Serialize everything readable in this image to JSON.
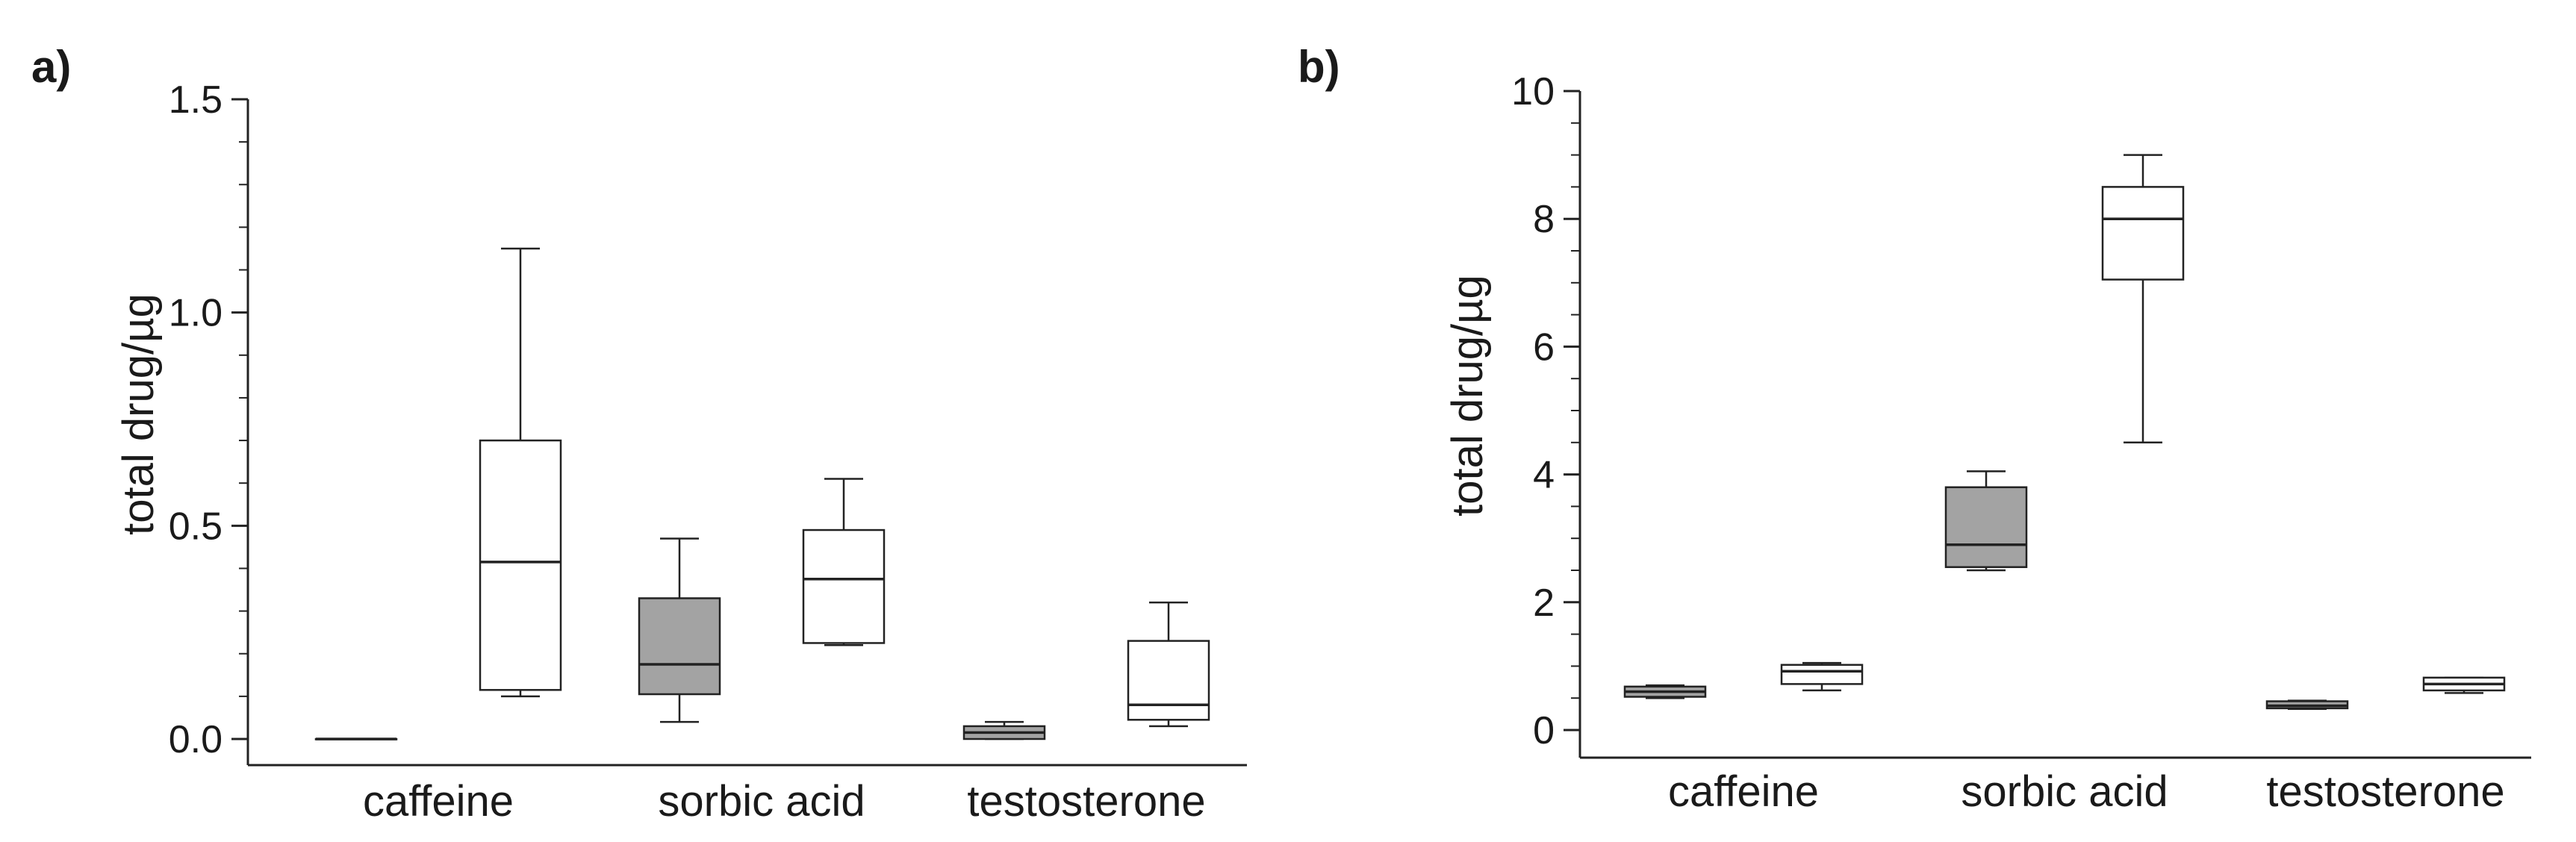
{
  "chart_data": [
    {
      "panel_label": "a)",
      "type": "box",
      "title": "",
      "xlabel": "",
      "ylabel": "total drug/µg",
      "ylim": [
        0,
        1.5
      ],
      "yticks": [
        0.0,
        0.5,
        1.0,
        1.5
      ],
      "ytick_labels": [
        "0.0",
        "0.5",
        "1.0",
        "1.5"
      ],
      "minor_ytick_step": 0.1,
      "categories": [
        "caffeine",
        "sorbic acid",
        "testosterone"
      ],
      "series": [
        {
          "name": "grey",
          "color": "#a3a3a3",
          "boxes": [
            {
              "min": 0.0,
              "q1": 0.0,
              "median": 0.0,
              "q3": 0.0,
              "max": 0.0
            },
            {
              "min": 0.04,
              "q1": 0.105,
              "median": 0.175,
              "q3": 0.33,
              "max": 0.47
            },
            {
              "min": 0.0,
              "q1": 0.0,
              "median": 0.015,
              "q3": 0.03,
              "max": 0.04
            }
          ]
        },
        {
          "name": "white",
          "color": "#ffffff",
          "boxes": [
            {
              "min": 0.1,
              "q1": 0.115,
              "median": 0.415,
              "q3": 0.7,
              "max": 1.15
            },
            {
              "min": 0.22,
              "q1": 0.225,
              "median": 0.375,
              "q3": 0.49,
              "max": 0.61
            },
            {
              "min": 0.03,
              "q1": 0.045,
              "median": 0.08,
              "q3": 0.23,
              "max": 0.32
            }
          ]
        }
      ]
    },
    {
      "panel_label": "b)",
      "type": "box",
      "title": "",
      "xlabel": "",
      "ylabel": "total drug/µg",
      "ylim": [
        0,
        10
      ],
      "yticks": [
        0,
        2,
        4,
        6,
        8,
        10
      ],
      "ytick_labels": [
        "0",
        "2",
        "4",
        "6",
        "8",
        "10"
      ],
      "minor_ytick_step": 0.5,
      "categories": [
        "caffeine",
        "sorbic acid",
        "testosterone"
      ],
      "series": [
        {
          "name": "grey",
          "color": "#a3a3a3",
          "boxes": [
            {
              "min": 0.5,
              "q1": 0.52,
              "median": 0.6,
              "q3": 0.68,
              "max": 0.7
            },
            {
              "min": 2.5,
              "q1": 2.55,
              "median": 2.9,
              "q3": 3.8,
              "max": 4.05
            },
            {
              "min": 0.33,
              "q1": 0.34,
              "median": 0.38,
              "q3": 0.45,
              "max": 0.46
            }
          ]
        },
        {
          "name": "white",
          "color": "#ffffff",
          "boxes": [
            {
              "min": 0.62,
              "q1": 0.72,
              "median": 0.92,
              "q3": 1.02,
              "max": 1.05
            },
            {
              "min": 4.5,
              "q1": 7.05,
              "median": 8.0,
              "q3": 8.5,
              "max": 9.0
            },
            {
              "min": 0.58,
              "q1": 0.62,
              "median": 0.72,
              "q3": 0.82,
              "max": 0.82
            }
          ]
        }
      ]
    }
  ]
}
